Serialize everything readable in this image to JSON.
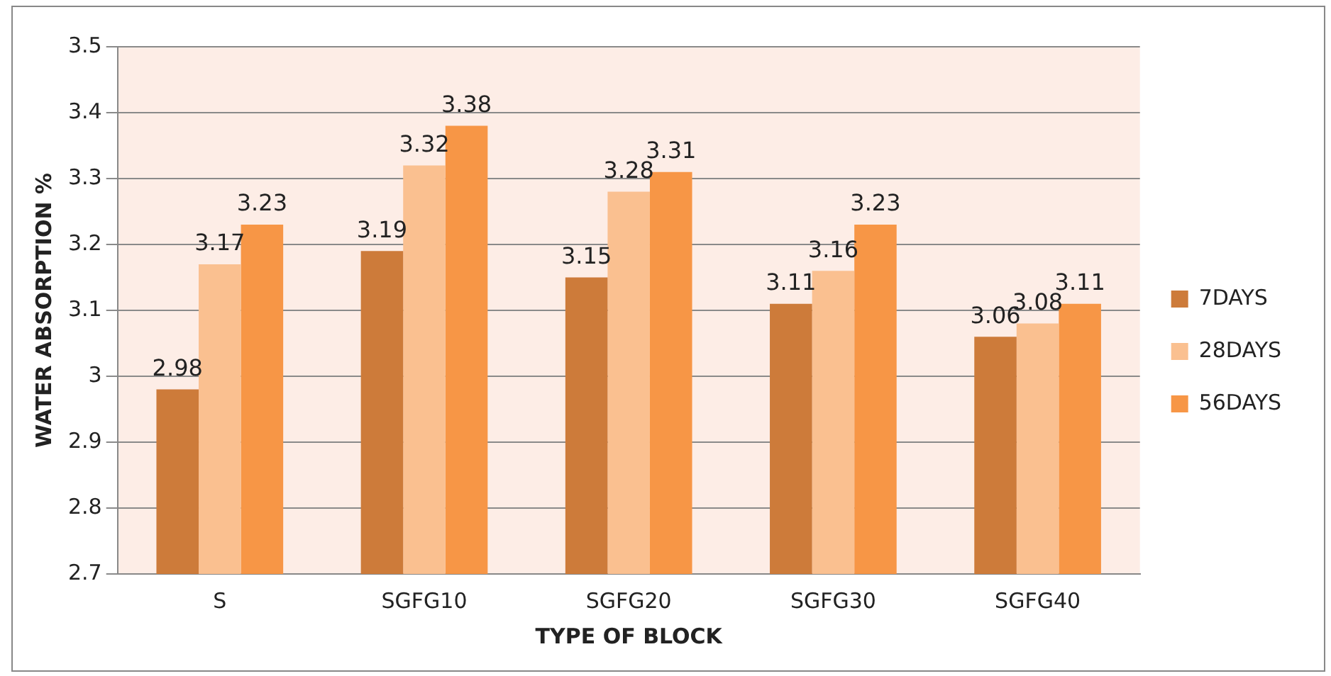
{
  "chart_data": {
    "type": "bar",
    "xlabel": "TYPE OF BLOCK",
    "ylabel": "WATER ABSORPTION %",
    "categories": [
      "S",
      "SGFG10",
      "SGFG20",
      "SGFG30",
      "SGFG40"
    ],
    "series": [
      {
        "name": "7DAYS",
        "color": "#cd7b3a",
        "values": [
          2.98,
          3.19,
          3.15,
          3.11,
          3.06
        ]
      },
      {
        "name": "28DAYS",
        "color": "#fac090",
        "values": [
          3.17,
          3.32,
          3.28,
          3.16,
          3.08
        ]
      },
      {
        "name": "56DAYS",
        "color": "#f79646",
        "values": [
          3.23,
          3.38,
          3.31,
          3.23,
          3.11
        ]
      }
    ],
    "ylim": [
      2.7,
      3.5
    ],
    "yticks": [
      2.7,
      2.8,
      2.9,
      3,
      3.1,
      3.2,
      3.3,
      3.4,
      3.5
    ],
    "grid": "y",
    "legend": "right",
    "data_labels": true
  }
}
